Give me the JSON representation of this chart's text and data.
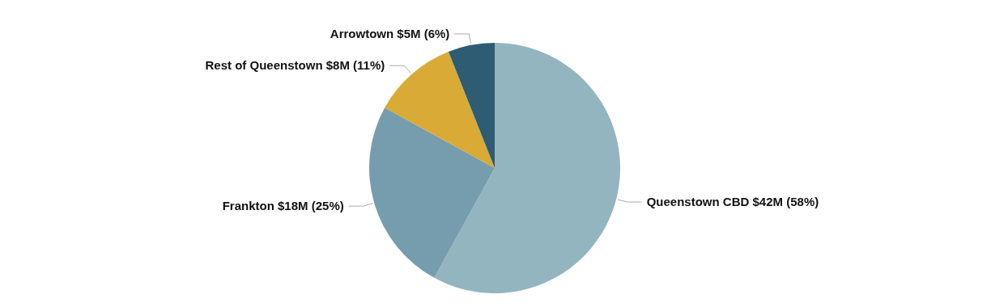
{
  "chart_data": {
    "type": "pie",
    "categories": [
      "Queenstown CBD $42M (58%)",
      "Frankton $18M (25%)",
      "Rest of Queenstown $8M (11%)",
      "Arrowtown $5M (6%)"
    ],
    "values": [
      58,
      25,
      11,
      6
    ],
    "colors": [
      "#93b5c0",
      "#769dad",
      "#d9aa35",
      "#2e5c72"
    ]
  }
}
